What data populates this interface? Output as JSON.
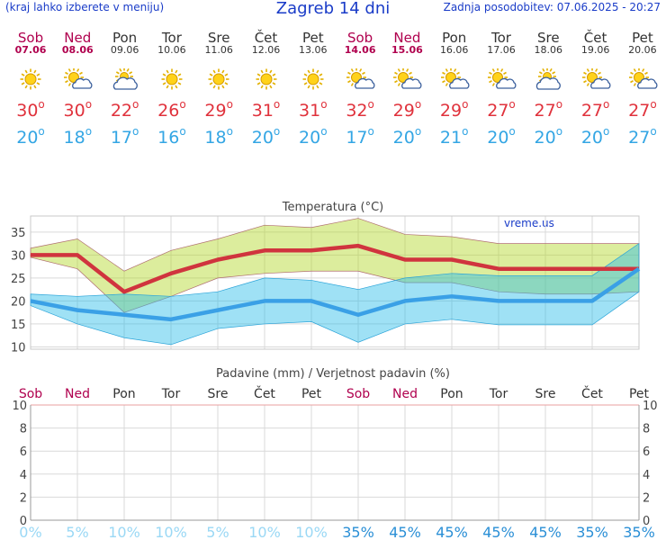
{
  "header": {
    "hint": "(kraj lahko izberete v meniju)",
    "title": "Zagreb 14 dni",
    "updated": "Zadnja posodobitev: 07.06.2025 - 20:27"
  },
  "colors": {
    "weekday": "#333333",
    "weekend": "#b0004e",
    "tmax": "#e0323c",
    "tmin": "#34a6e4",
    "prob_low": "#9ad8f5",
    "prob_high": "#2a8fd6"
  },
  "days": [
    {
      "name": "Sob",
      "date": "07.06",
      "weekend": true,
      "icon": "sun-icon",
      "tmax": "30",
      "tmin": "20",
      "prob": "0%"
    },
    {
      "name": "Ned",
      "date": "08.06",
      "weekend": true,
      "icon": "sun-cloud-icon",
      "tmax": "30",
      "tmin": "18",
      "prob": "5%"
    },
    {
      "name": "Pon",
      "date": "09.06",
      "weekend": false,
      "icon": "cloud-sun-icon",
      "tmax": "22",
      "tmin": "17",
      "prob": "10%"
    },
    {
      "name": "Tor",
      "date": "10.06",
      "weekend": false,
      "icon": "sun-icon",
      "tmax": "26",
      "tmin": "16",
      "prob": "10%"
    },
    {
      "name": "Sre",
      "date": "11.06",
      "weekend": false,
      "icon": "sun-icon",
      "tmax": "29",
      "tmin": "18",
      "prob": "5%"
    },
    {
      "name": "Čet",
      "date": "12.06",
      "weekend": false,
      "icon": "sun-icon",
      "tmax": "31",
      "tmin": "20",
      "prob": "10%"
    },
    {
      "name": "Pet",
      "date": "13.06",
      "weekend": false,
      "icon": "sun-icon",
      "tmax": "31",
      "tmin": "20",
      "prob": "10%"
    },
    {
      "name": "Sob",
      "date": "14.06",
      "weekend": true,
      "icon": "sun-cloud-icon",
      "tmax": "32",
      "tmin": "17",
      "prob": "35%"
    },
    {
      "name": "Ned",
      "date": "15.06",
      "weekend": true,
      "icon": "sun-cloud-icon",
      "tmax": "29",
      "tmin": "20",
      "prob": "45%"
    },
    {
      "name": "Pon",
      "date": "16.06",
      "weekend": false,
      "icon": "sun-cloud-icon",
      "tmax": "29",
      "tmin": "21",
      "prob": "45%"
    },
    {
      "name": "Tor",
      "date": "17.06",
      "weekend": false,
      "icon": "sun-cloud-icon",
      "tmax": "27",
      "tmin": "20",
      "prob": "45%"
    },
    {
      "name": "Sre",
      "date": "18.06",
      "weekend": false,
      "icon": "cloud-sun-icon",
      "tmax": "27",
      "tmin": "20",
      "prob": "45%"
    },
    {
      "name": "Čet",
      "date": "19.06",
      "weekend": false,
      "icon": "sun-cloud-icon",
      "tmax": "27",
      "tmin": "20",
      "prob": "35%"
    },
    {
      "name": "Pet",
      "date": "20.06",
      "weekend": false,
      "icon": "sun-cloud-icon",
      "tmax": "27",
      "tmin": "27",
      "prob": "35%"
    }
  ],
  "chart_data": [
    {
      "type": "line",
      "title": "Temperatura (°C)",
      "watermark": "vreme.us",
      "categories": [
        "Sob",
        "Ned",
        "Pon",
        "Tor",
        "Sre",
        "Čet",
        "Pet",
        "Sob",
        "Ned",
        "Pon",
        "Tor",
        "Sre",
        "Čet",
        "Pet"
      ],
      "yticks": [
        10,
        15,
        20,
        25,
        30,
        35
      ],
      "ylim": [
        9.5,
        38.5
      ],
      "grid": true,
      "series": [
        {
          "values": [
            30,
            30,
            22,
            26,
            29,
            31,
            31,
            32,
            29,
            29,
            27,
            27,
            27,
            27
          ]
        },
        {
          "values": [
            20,
            18,
            17,
            16,
            18,
            20,
            20,
            17,
            20,
            21,
            20,
            20,
            20,
            27
          ]
        }
      ],
      "bands": [
        {
          "upper": [
            31.5,
            33.5,
            26.5,
            31,
            33.5,
            36.5,
            36,
            38,
            34.5,
            34,
            32.5,
            32.5,
            32.5,
            32.5
          ],
          "lower": [
            29.5,
            27,
            17.5,
            21,
            25,
            26,
            26.5,
            26.5,
            24,
            24,
            22,
            21.5,
            21.5,
            22
          ]
        },
        {
          "upper": [
            21.5,
            21,
            21.5,
            21,
            22,
            25,
            24.5,
            22.5,
            25,
            26,
            25.5,
            25.5,
            25.5,
            32.5
          ],
          "lower": [
            19,
            15,
            12,
            10.5,
            14,
            15,
            15.5,
            11,
            15,
            16,
            14.8,
            14.8,
            14.8,
            22
          ]
        }
      ]
    },
    {
      "type": "bar",
      "title": "Padavine (mm) / Verjetnost padavin (%)",
      "categories": [
        "Sob",
        "Ned",
        "Pon",
        "Tor",
        "Sre",
        "Čet",
        "Pet",
        "Sob",
        "Ned",
        "Pon",
        "Tor",
        "Sre",
        "Čet",
        "Pet"
      ],
      "ylim": [
        0,
        10
      ],
      "yticks": [
        0,
        2,
        4,
        6,
        8,
        10
      ],
      "grid": true,
      "precipitation_mm": [
        0,
        0,
        0,
        0,
        0,
        0,
        0,
        0,
        0,
        0,
        0,
        0,
        0,
        0
      ],
      "probability_pct": [
        0,
        5,
        10,
        10,
        5,
        10,
        10,
        35,
        45,
        45,
        45,
        45,
        35,
        35
      ]
    }
  ]
}
